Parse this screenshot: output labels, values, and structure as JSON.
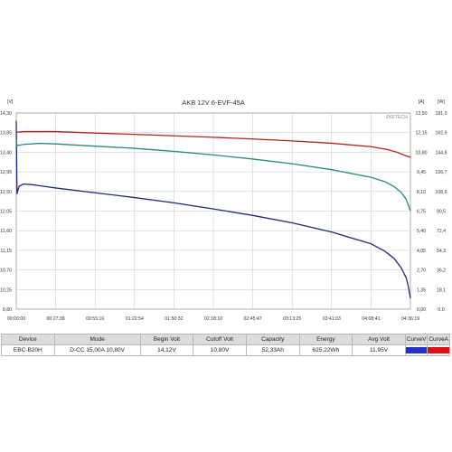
{
  "chart_data": {
    "type": "line",
    "title": "AKB 12V 6-EVF-45A",
    "watermark": "ZKETECH",
    "grid": true,
    "axes": {
      "left": {
        "unit": "[V]",
        "range": [
          9.8,
          14.3
        ],
        "ticks": [
          "9,80",
          "10,25",
          "10,70",
          "11,15",
          "11,60",
          "12,05",
          "12,50",
          "12,95",
          "13,40",
          "13,85",
          "14,30"
        ]
      },
      "right1": {
        "unit": "[A]",
        "range": [
          0,
          13.5
        ],
        "ticks": [
          "0,00",
          "1,35",
          "2,70",
          "4,05",
          "5,40",
          "6,75",
          "8,10",
          "9,45",
          "10,80",
          "12,15",
          "13,50"
        ]
      },
      "right2": {
        "unit": "[W]",
        "range": [
          0,
          181.0
        ],
        "ticks": [
          "0,0",
          "18,1",
          "36,2",
          "54,3",
          "72,4",
          "90,5",
          "108,6",
          "126,7",
          "144,8",
          "162,9",
          "181,0"
        ]
      },
      "x": {
        "range": [
          0,
          16579
        ],
        "ticks": [
          "00:00:00",
          "00:27:38",
          "00:55:16",
          "01:22:54",
          "01:50:32",
          "02:18:10",
          "02:45:47",
          "03:13:25",
          "03:41:03",
          "04:08:41",
          "04:36:19"
        ]
      }
    },
    "series": [
      {
        "key": "voltage",
        "axis": "left",
        "color": "#1f2a78",
        "x": [
          0,
          30,
          120,
          300,
          600,
          1000,
          1658,
          3316,
          4974,
          6632,
          8290,
          9948,
          11605,
          13263,
          14921,
          15500,
          15900,
          16200,
          16400,
          16500,
          16579
        ],
        "y": [
          14.12,
          12.45,
          12.62,
          12.67,
          12.66,
          12.63,
          12.58,
          12.47,
          12.36,
          12.24,
          12.1,
          11.95,
          11.78,
          11.57,
          11.3,
          11.13,
          10.96,
          10.74,
          10.52,
          10.3,
          10.05
        ]
      },
      {
        "key": "current",
        "axis": "right1",
        "color": "#b22222",
        "x": [
          0,
          30,
          300,
          1000,
          1658,
          3316,
          4974,
          6632,
          8290,
          9948,
          11605,
          13263,
          14921,
          15600,
          16000,
          16300,
          16579
        ],
        "y": [
          12.2,
          12.18,
          12.22,
          12.22,
          12.22,
          12.12,
          12.03,
          11.93,
          11.83,
          11.71,
          11.58,
          11.42,
          11.18,
          10.99,
          10.81,
          10.61,
          10.45
        ]
      },
      {
        "key": "power",
        "axis": "right2",
        "color": "#2a8a78",
        "x": [
          0,
          30,
          300,
          1000,
          1658,
          3316,
          4974,
          6632,
          8290,
          9948,
          11605,
          13263,
          14921,
          15500,
          15900,
          16200,
          16400,
          16579
        ],
        "y": [
          156.0,
          151.0,
          152.0,
          153.0,
          152.5,
          150.4,
          148.4,
          145.6,
          142.3,
          138.5,
          134.2,
          128.7,
          121.7,
          117.7,
          113.0,
          107.5,
          101.5,
          90.8
        ]
      }
    ]
  },
  "info_table": {
    "headers": [
      "Device",
      "Mode",
      "Begin Volt",
      "Cutoff Volt",
      "Capacity",
      "Energy",
      "Avg Volt",
      "CurveV",
      "CurveA"
    ],
    "row": [
      "EBC-B20H",
      "D-CC 15,00A 10,80V",
      "14,12V",
      "10,80V",
      "52,33Ah",
      "625,22Wh",
      "11,95V",
      "",
      ""
    ],
    "curve_v_color": "#2233cc",
    "curve_a_color": "#dd1111"
  }
}
